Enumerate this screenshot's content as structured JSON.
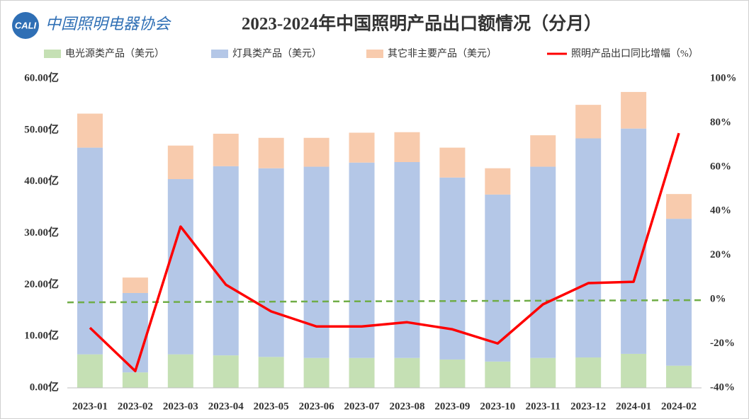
{
  "chart_data": {
    "type": "stacked-bar-line",
    "logo_abbr": "CALI",
    "logo_text": "中国照明电器协会",
    "title": "2023-2024年中国照明产品出口额情况（分月）",
    "categories": [
      "2023-01",
      "2023-02",
      "2023-03",
      "2023-04",
      "2023-05",
      "2023-06",
      "2023-07",
      "2023-08",
      "2023-09",
      "2023-10",
      "2023-11",
      "2023-12",
      "2024-01",
      "2024-02"
    ],
    "series": [
      {
        "name": "电光源类产品（美元）",
        "color": "#c5e0b4",
        "values": [
          6.5,
          3.0,
          6.5,
          6.3,
          6.0,
          5.8,
          5.8,
          5.8,
          5.5,
          5.1,
          5.8,
          5.9,
          6.6,
          4.3
        ]
      },
      {
        "name": "灯具类产品（美元）",
        "color": "#b4c7e7",
        "values": [
          40.1,
          15.4,
          34.0,
          36.7,
          36.6,
          37.1,
          37.9,
          38.0,
          35.3,
          32.4,
          37.1,
          42.5,
          43.7,
          28.5
        ]
      },
      {
        "name": "其它非主要产品（美元）",
        "color": "#f8cbad",
        "values": [
          6.6,
          3.0,
          6.5,
          6.3,
          5.9,
          5.6,
          5.8,
          5.8,
          5.8,
          5.1,
          6.1,
          6.5,
          7.1,
          4.8
        ]
      },
      {
        "name": "照明产品出口同比增幅（%）",
        "color": "#ff0000",
        "axis": "y2",
        "values": [
          -12.8,
          -32.4,
          33.0,
          6.7,
          -5.4,
          -12.2,
          -12.2,
          -10.3,
          -13.5,
          -19.9,
          -2.2,
          7.4,
          8.0,
          75.3
        ]
      }
    ],
    "trendline": {
      "color": "#70ad47",
      "axis": "y2",
      "values": [
        -1.3,
        -0.3
      ]
    },
    "ylim": [
      0,
      60
    ],
    "yticks": [
      {
        "value": 0,
        "label": "0.00亿"
      },
      {
        "value": 10,
        "label": "10.00亿"
      },
      {
        "value": 20,
        "label": "20.00亿"
      },
      {
        "value": 30,
        "label": "30.00亿"
      },
      {
        "value": 40,
        "label": "40.00亿"
      },
      {
        "value": 50,
        "label": "50.00亿"
      },
      {
        "value": 60,
        "label": "60.00亿"
      }
    ],
    "y2lim": [
      -40,
      100
    ],
    "y2ticks": [
      {
        "value": -40,
        "label": "-40%"
      },
      {
        "value": -20,
        "label": "-20%"
      },
      {
        "value": 0,
        "label": "0%"
      },
      {
        "value": 20,
        "label": "20%"
      },
      {
        "value": 40,
        "label": "40%"
      },
      {
        "value": 60,
        "label": "60%"
      },
      {
        "value": 80,
        "label": "80%"
      },
      {
        "value": 100,
        "label": "100%"
      }
    ],
    "grid": false,
    "legend": "top"
  }
}
